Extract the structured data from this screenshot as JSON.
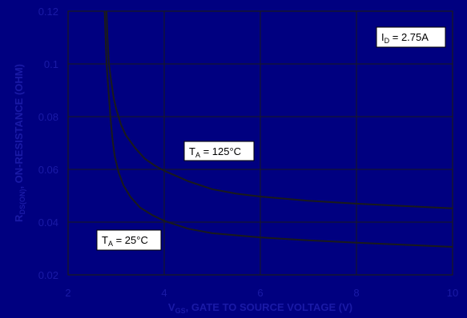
{
  "chart_data": {
    "type": "line",
    "xlabel_main": "V",
    "xlabel_sub": "GS",
    "xlabel_rest": ", GATE TO SOURCE VOLTAGE (V)",
    "ylabel_main": "R",
    "ylabel_sub": "DS(ON)",
    "ylabel_rest": ", ON-RESISTANCE (OHM)",
    "xlim": [
      2,
      10
    ],
    "ylim": [
      0.02,
      0.12
    ],
    "xticks": [
      "2",
      "4",
      "6",
      "8",
      "10"
    ],
    "yticks": [
      "0.02",
      "0.04",
      "0.06",
      "0.08",
      "0.1",
      "0.12"
    ],
    "grid": true,
    "series": [
      {
        "name": "T_A = 125°C",
        "x": [
          2.8,
          2.82,
          2.85,
          2.9,
          2.95,
          3.0,
          3.1,
          3.2,
          3.4,
          3.6,
          3.8,
          4.0,
          4.5,
          5.0,
          5.5,
          6.0,
          7.0,
          8.0,
          9.0,
          10.0
        ],
        "y": [
          0.12,
          0.11,
          0.1,
          0.093,
          0.087,
          0.083,
          0.077,
          0.073,
          0.068,
          0.064,
          0.0615,
          0.0595,
          0.0555,
          0.0525,
          0.0508,
          0.0497,
          0.0481,
          0.047,
          0.0461,
          0.0452
        ]
      },
      {
        "name": "T_A = 25°C",
        "x": [
          2.76,
          2.78,
          2.8,
          2.84,
          2.88,
          2.92,
          2.97,
          3.05,
          3.15,
          3.3,
          3.5,
          3.75,
          4.0,
          4.5,
          5.0,
          6.0,
          7.0,
          8.0,
          9.0,
          10.0
        ],
        "y": [
          0.12,
          0.11,
          0.1,
          0.09,
          0.08,
          0.072,
          0.065,
          0.059,
          0.054,
          0.0495,
          0.0455,
          0.0427,
          0.0405,
          0.0375,
          0.0358,
          0.0342,
          0.0331,
          0.0322,
          0.0314,
          0.0306
        ]
      }
    ],
    "annotations": [
      {
        "main": "T",
        "sub": "A",
        "rest": " = 125°C"
      },
      {
        "main": "T",
        "sub": "A",
        "rest": " = 25°C"
      },
      {
        "main": "I",
        "sub": "D",
        "rest": " = 2.75A"
      }
    ]
  }
}
